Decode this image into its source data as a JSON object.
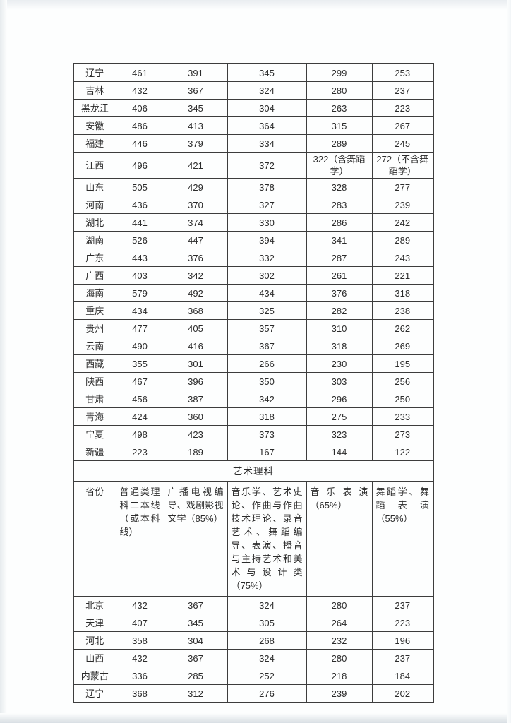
{
  "document": {
    "section_title": "艺术理科",
    "columns": [
      "省份",
      "普通类理科二本线（或本科线）",
      "广播电视编导、戏剧影视文学（85%）",
      "音乐学、艺术史论、作曲与作曲技术理论、录音艺术、舞蹈编导、表演、播音与主持艺术和美术与设计类（75%）",
      "音乐表演（65%）",
      "舞蹈学、舞蹈表演（55%）"
    ],
    "section1_rows": [
      [
        "辽宁",
        "461",
        "391",
        "345",
        "299",
        "253"
      ],
      [
        "吉林",
        "432",
        "367",
        "324",
        "280",
        "237"
      ],
      [
        "黑龙江",
        "406",
        "345",
        "304",
        "263",
        "223"
      ],
      [
        "安徽",
        "486",
        "413",
        "364",
        "315",
        "267"
      ],
      [
        "福建",
        "446",
        "379",
        "334",
        "289",
        "245"
      ],
      [
        "江西",
        "496",
        "421",
        "372",
        "322（含舞蹈学）",
        "272（不含舞蹈学）"
      ],
      [
        "山东",
        "505",
        "429",
        "378",
        "328",
        "277"
      ],
      [
        "河南",
        "436",
        "370",
        "327",
        "283",
        "239"
      ],
      [
        "湖北",
        "441",
        "374",
        "330",
        "286",
        "242"
      ],
      [
        "湖南",
        "526",
        "447",
        "394",
        "341",
        "289"
      ],
      [
        "广东",
        "443",
        "376",
        "332",
        "287",
        "243"
      ],
      [
        "广西",
        "403",
        "342",
        "302",
        "261",
        "221"
      ],
      [
        "海南",
        "579",
        "492",
        "434",
        "376",
        "318"
      ],
      [
        "重庆",
        "434",
        "368",
        "325",
        "282",
        "238"
      ],
      [
        "贵州",
        "477",
        "405",
        "357",
        "310",
        "262"
      ],
      [
        "云南",
        "490",
        "416",
        "367",
        "318",
        "269"
      ],
      [
        "西藏",
        "355",
        "301",
        "266",
        "230",
        "195"
      ],
      [
        "陕西",
        "467",
        "396",
        "350",
        "303",
        "256"
      ],
      [
        "甘肃",
        "456",
        "387",
        "342",
        "296",
        "250"
      ],
      [
        "青海",
        "424",
        "360",
        "318",
        "275",
        "233"
      ],
      [
        "宁夏",
        "498",
        "423",
        "373",
        "323",
        "273"
      ],
      [
        "新疆",
        "223",
        "189",
        "167",
        "144",
        "122"
      ]
    ],
    "section2_rows": [
      [
        "北京",
        "432",
        "367",
        "324",
        "280",
        "237"
      ],
      [
        "天津",
        "407",
        "345",
        "305",
        "264",
        "223"
      ],
      [
        "河北",
        "358",
        "304",
        "268",
        "232",
        "196"
      ],
      [
        "山西",
        "432",
        "367",
        "324",
        "280",
        "237"
      ],
      [
        "内蒙古",
        "336",
        "285",
        "252",
        "218",
        "184"
      ],
      [
        "辽宁",
        "368",
        "312",
        "276",
        "239",
        "202"
      ]
    ],
    "colors": {
      "border": "#3d3d3d",
      "text": "#2b2b2b",
      "page": "#fdfefe",
      "scan_edge": "#d9dfe4"
    }
  }
}
